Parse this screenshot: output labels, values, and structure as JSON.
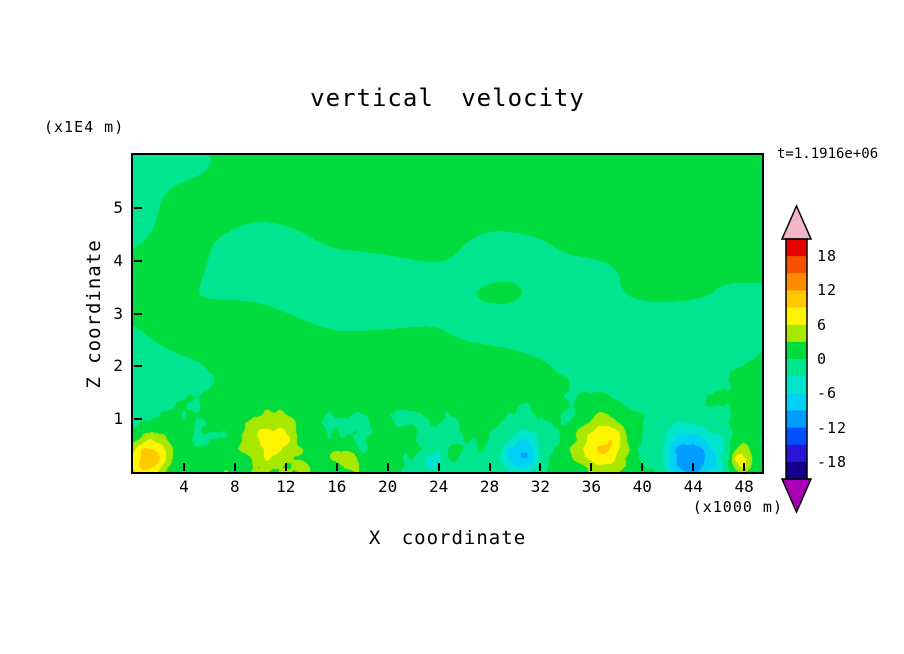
{
  "chart_data": {
    "type": "heatmap",
    "title": "vertical velocity",
    "time_label": "t=1.1916e+06",
    "xlabel": "X coordinate",
    "x_units": "(x1000 m)",
    "ylabel": "Z coordinate",
    "y_units": "(x1E4 m)",
    "xlim": [
      0,
      49.4
    ],
    "ylim": [
      0,
      6
    ],
    "x_ticks": [
      4,
      8,
      12,
      16,
      20,
      24,
      28,
      32,
      36,
      40,
      44,
      48
    ],
    "y_ticks": [
      1,
      2,
      3,
      4,
      5
    ],
    "grid": false,
    "legend_position": "right-colorbar",
    "colorbar": {
      "tick_labels": [
        {
          "value": 18,
          "text": "18"
        },
        {
          "value": 12,
          "text": "12"
        },
        {
          "value": 6,
          "text": "6"
        },
        {
          "value": 0,
          "text": "0"
        },
        {
          "value": -6,
          "text": "-6"
        },
        {
          "value": -12,
          "text": "-12"
        },
        {
          "value": -18,
          "text": "-18"
        }
      ],
      "level_min": -21,
      "level_max": 21,
      "level_step": 3,
      "palette": [
        {
          "from": 18,
          "to": 21,
          "color": "#e60000"
        },
        {
          "from": 15,
          "to": 18,
          "color": "#f55200"
        },
        {
          "from": 12,
          "to": 15,
          "color": "#ff8c00"
        },
        {
          "from": 9,
          "to": 12,
          "color": "#ffc800"
        },
        {
          "from": 6,
          "to": 9,
          "color": "#fff500"
        },
        {
          "from": 3,
          "to": 6,
          "color": "#a8e800"
        },
        {
          "from": 0,
          "to": 3,
          "color": "#00dc3e"
        },
        {
          "from": -3,
          "to": 0,
          "color": "#00e690"
        },
        {
          "from": -6,
          "to": -3,
          "color": "#00e6cc"
        },
        {
          "from": -9,
          "to": -6,
          "color": "#00d2f5"
        },
        {
          "from": -12,
          "to": -9,
          "color": "#009cff"
        },
        {
          "from": -15,
          "to": -12,
          "color": "#0050ff"
        },
        {
          "from": -18,
          "to": -15,
          "color": "#2a14d8"
        },
        {
          "from": -21,
          "to": -18,
          "color": "#14008c"
        }
      ],
      "over_color": "#f2b6c6",
      "under_color": "#aa00b4"
    },
    "field": {
      "description": "Filled contour field of vertical velocity; weak smooth anomalies aloft (two green bands around 0), fine-grained turbulence below z~2, strong updraft/downdraft cells near the surface.",
      "base": {
        "amplitude": 2.3,
        "fx": 0.075,
        "fz": 0.55
      },
      "turbulence": {
        "amplitude": 3.0,
        "fx": 0.85,
        "fz": 2.8,
        "top_z": 2.25,
        "sharpness": 1.4
      },
      "features": [
        {
          "x": 1.2,
          "z": 0.25,
          "rx": 1.6,
          "rz": 0.45,
          "amp": 10,
          "note": "strong updraft, yellow core, far left"
        },
        {
          "x": 10.8,
          "z": 0.55,
          "rx": 2.0,
          "rz": 0.5,
          "amp": 6.5,
          "note": "updraft arc near x=11"
        },
        {
          "x": 17.0,
          "z": 0.15,
          "rx": 1.0,
          "rz": 0.25,
          "amp": 4,
          "note": "weak updraft"
        },
        {
          "x": 23.5,
          "z": 0.2,
          "rx": 1.4,
          "rz": 0.3,
          "amp": -5,
          "note": "weak downdraft, turquoise"
        },
        {
          "x": 30.5,
          "z": 0.35,
          "rx": 1.6,
          "rz": 0.5,
          "amp": -8,
          "note": "downdraft, cyan patch near x=31"
        },
        {
          "x": 37.0,
          "z": 0.5,
          "rx": 1.7,
          "rz": 0.55,
          "amp": 9,
          "note": "updraft, yellow blob near x=37"
        },
        {
          "x": 43.8,
          "z": 0.3,
          "rx": 2.3,
          "rz": 0.55,
          "amp": -12,
          "note": "strong downdraft, cyan with blue core near x=44"
        },
        {
          "x": 47.8,
          "z": 0.2,
          "rx": 1.0,
          "rz": 0.3,
          "amp": 7,
          "note": "small updraft at right edge"
        }
      ]
    }
  }
}
